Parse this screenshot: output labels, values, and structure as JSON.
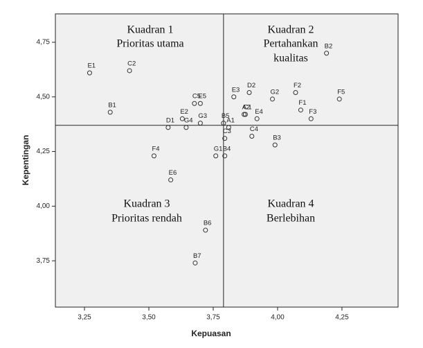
{
  "chart_data": {
    "type": "scatter",
    "x_label": "Kepuasan",
    "y_label": "Kepentingan",
    "xlim": [
      3.137,
      4.468
    ],
    "ylim": [
      3.538,
      4.88
    ],
    "xticks": [
      {
        "value": 3.25,
        "label": "3,25"
      },
      {
        "value": 3.5,
        "label": "3,50"
      },
      {
        "value": 3.75,
        "label": "3,75"
      },
      {
        "value": 4.0,
        "label": "4,00"
      },
      {
        "value": 4.25,
        "label": "4,25"
      }
    ],
    "yticks": [
      {
        "value": 3.75,
        "label": "3,75"
      },
      {
        "value": 4.0,
        "label": "4,00"
      },
      {
        "value": 4.25,
        "label": "4,25"
      },
      {
        "value": 4.5,
        "label": "4,50"
      },
      {
        "value": 4.75,
        "label": "4,75"
      }
    ],
    "reference_lines": {
      "x": 3.79,
      "y": 4.37
    },
    "color": "#333333",
    "background": "#f0f0f0",
    "point_labels": [
      "E1",
      "C2",
      "B1",
      "C5",
      "E5",
      "E2",
      "D1",
      "G3",
      "B5",
      "G4",
      "A1",
      "C3",
      "G1",
      "B4",
      "F4",
      "E6",
      "B6",
      "B7",
      "E3",
      "D2",
      "C1",
      "A2",
      "E4",
      "C4",
      "G2",
      "F2",
      "B2",
      "F1",
      "F3",
      "F5",
      "B3"
    ],
    "x": [
      3.27,
      3.425,
      3.35,
      3.677,
      3.7,
      3.63,
      3.575,
      3.7,
      3.79,
      3.645,
      3.81,
      3.795,
      3.76,
      3.795,
      3.52,
      3.585,
      3.72,
      3.68,
      3.83,
      3.89,
      3.875,
      3.87,
      3.92,
      3.9,
      3.98,
      4.07,
      4.19,
      4.09,
      4.13,
      4.24,
      3.99
    ],
    "values": [
      4.61,
      4.62,
      4.43,
      4.47,
      4.47,
      4.4,
      4.36,
      4.38,
      4.38,
      4.36,
      4.36,
      4.31,
      4.23,
      4.23,
      4.23,
      4.12,
      3.89,
      3.74,
      4.5,
      4.52,
      4.42,
      4.42,
      4.4,
      4.32,
      4.49,
      4.52,
      4.7,
      4.44,
      4.4,
      4.49,
      4.28
    ],
    "quadrants": [
      {
        "title": "Kuadran 1",
        "lines": [
          "Prioritas utama"
        ]
      },
      {
        "title": "Kuadran 2",
        "lines": [
          "Pertahankan",
          "kualitas"
        ]
      },
      {
        "title": "Kuadran 3",
        "lines": [
          "Prioritas rendah"
        ]
      },
      {
        "title": "Kuadran 4",
        "lines": [
          "Berlebihan"
        ]
      }
    ]
  }
}
